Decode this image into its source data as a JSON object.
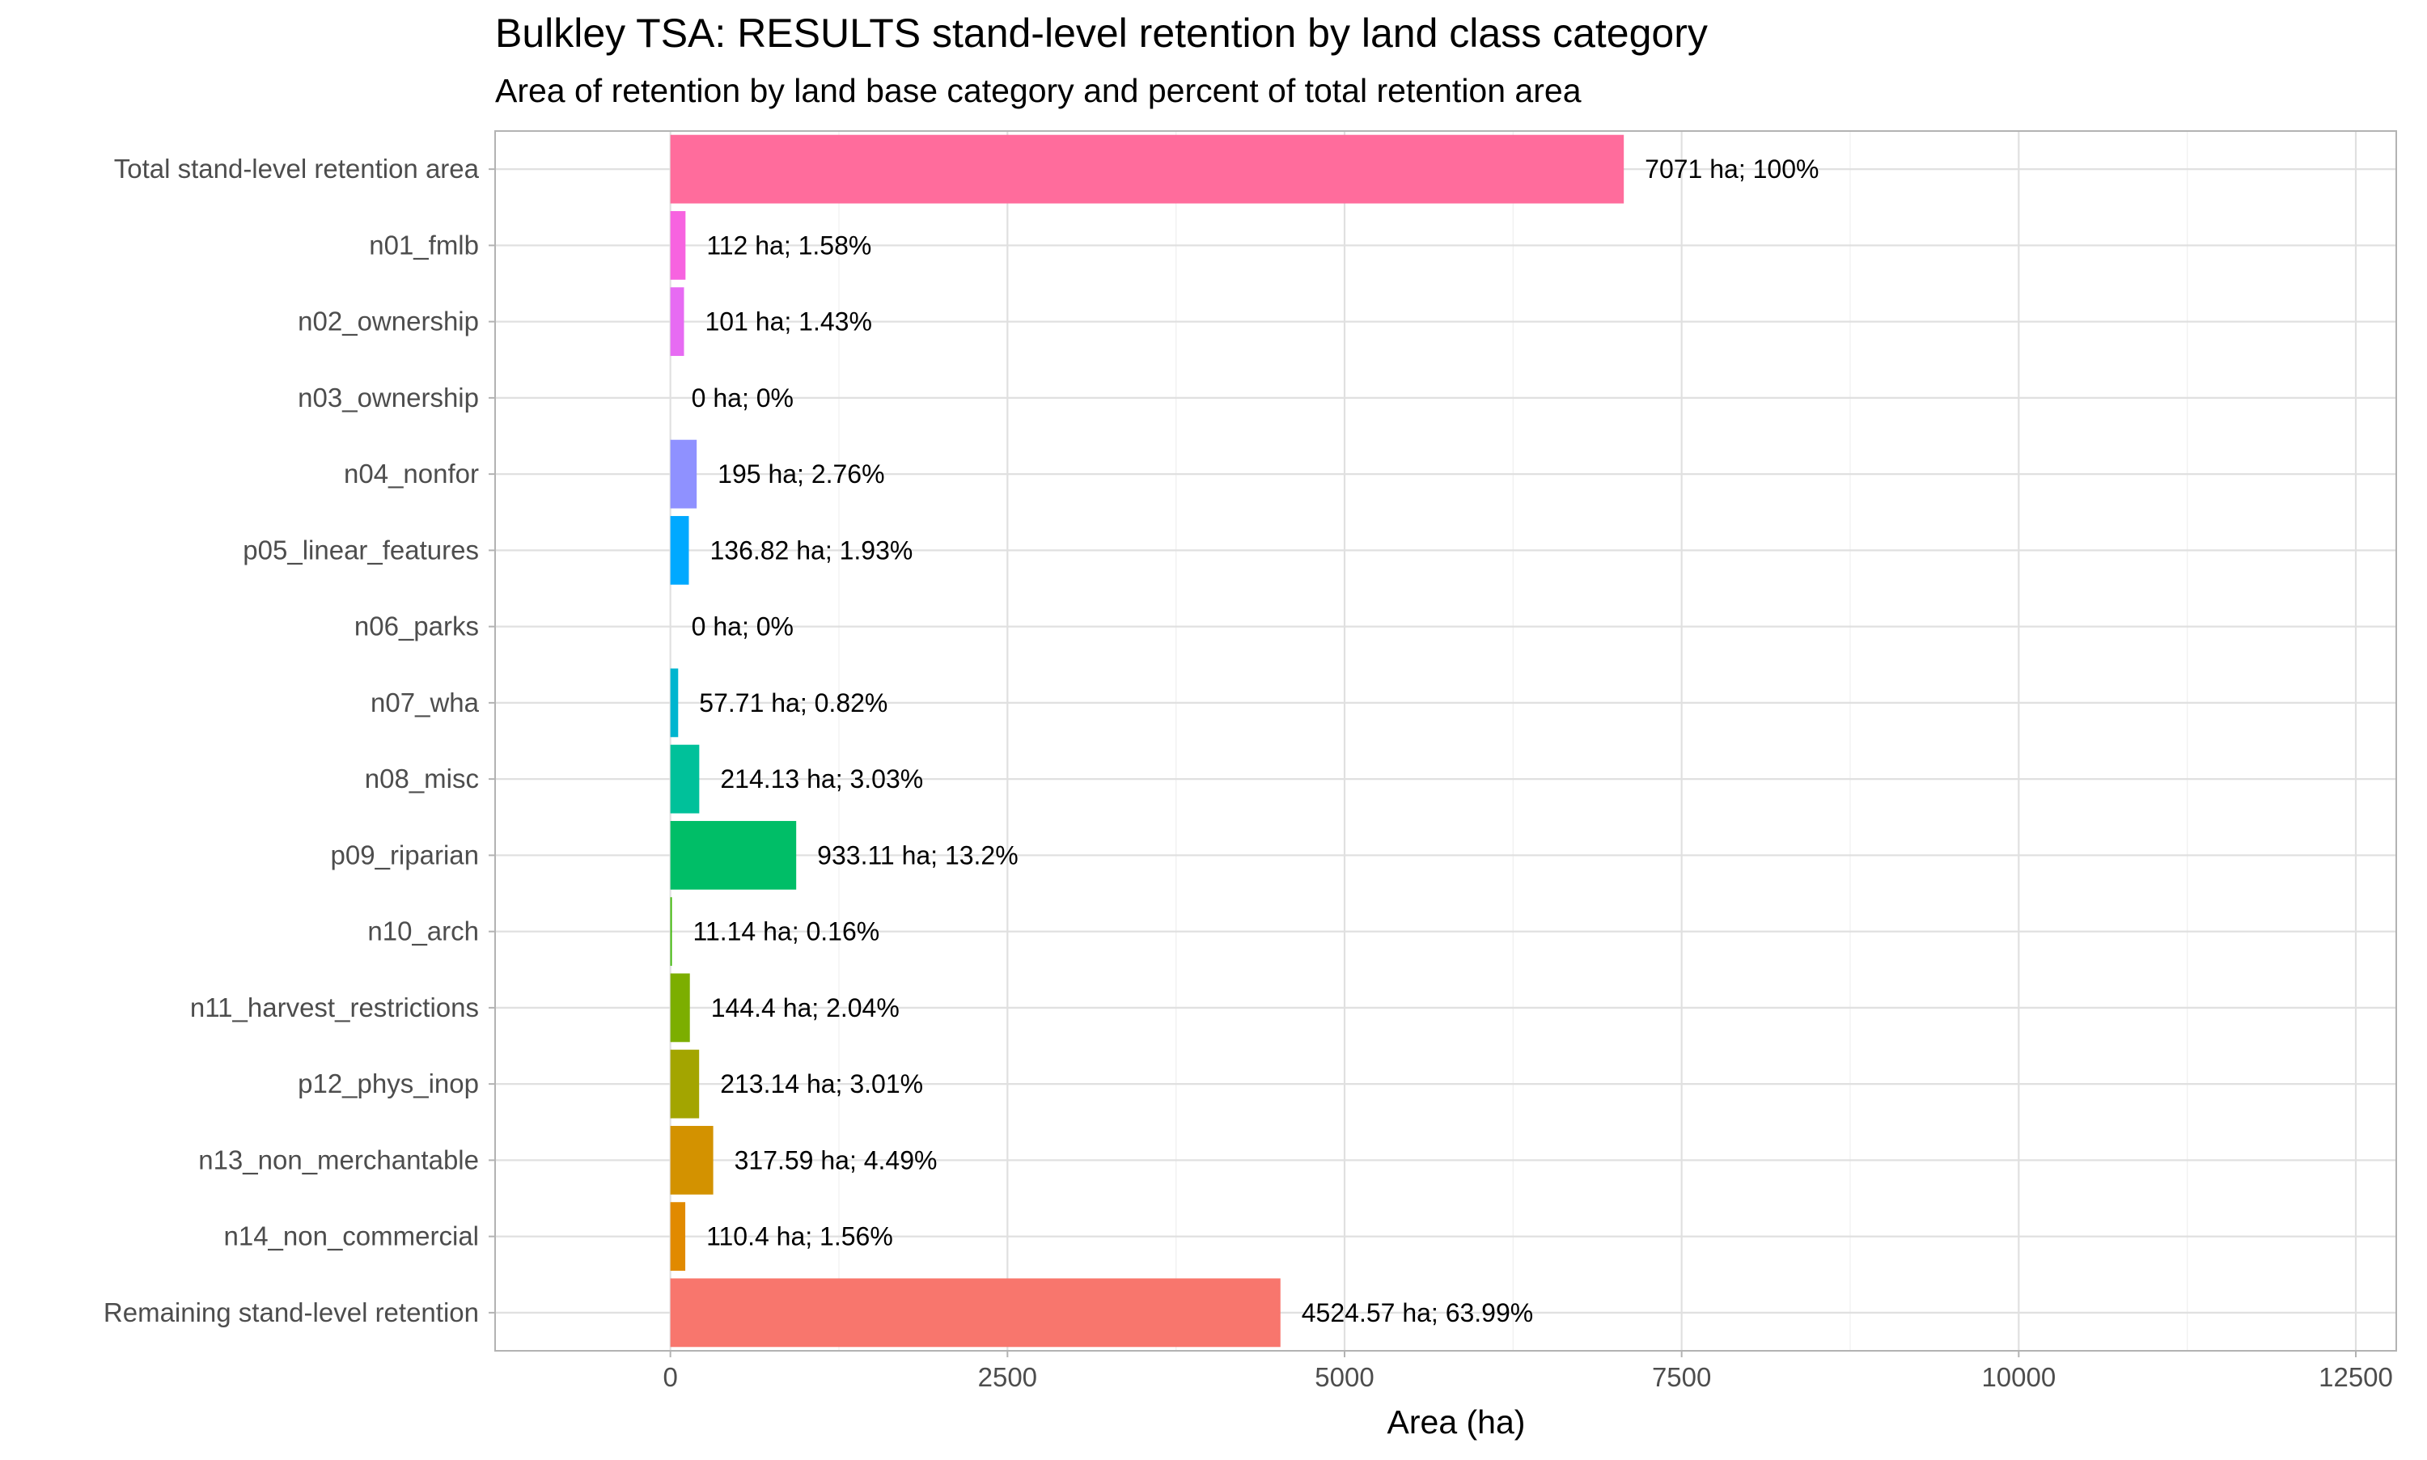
{
  "chart_data": {
    "type": "bar",
    "orientation": "horizontal",
    "title": "Bulkley TSA: RESULTS stand-level retention by land class category",
    "subtitle": "Area of retention by land base category and percent of total retention area",
    "xlabel": "Area (ha)",
    "ylabel": "",
    "xlim": [
      -1300,
      12800
    ],
    "xticks": [
      0,
      2500,
      5000,
      7500,
      10000,
      12500
    ],
    "xtick_labels": [
      "0",
      "2500",
      "5000",
      "7500",
      "10000",
      "12500"
    ],
    "grid": true,
    "legend": "none",
    "categories": [
      "Total stand-level retention area",
      "n01_fmlb",
      "n02_ownership",
      "n03_ownership",
      "n04_nonfor",
      "p05_linear_features",
      "n06_parks",
      "n07_wha",
      "n08_misc",
      "p09_riparian",
      "n10_arch",
      "n11_harvest_restrictions",
      "p12_phys_inop",
      "n13_non_merchantable",
      "n14_non_commercial",
      "Remaining stand-level retention"
    ],
    "values": [
      7071,
      112,
      101,
      0,
      195,
      136.82,
      0,
      57.71,
      214.13,
      933.11,
      11.14,
      144.4,
      213.14,
      317.59,
      110.4,
      4524.57
    ],
    "data_labels": [
      "7071 ha; 100%",
      "112 ha; 1.58%",
      "101 ha; 1.43%",
      "0 ha; 0%",
      "195 ha; 2.76%",
      "136.82 ha; 1.93%",
      "0 ha; 0%",
      "57.71 ha; 0.82%",
      "214.13 ha; 3.03%",
      "933.11 ha; 13.2%",
      "11.14 ha; 0.16%",
      "144.4 ha; 2.04%",
      "213.14 ha; 3.01%",
      "317.59 ha; 4.49%",
      "110.4 ha; 1.56%",
      "4524.57 ha; 63.99%"
    ],
    "colors": [
      "#FF6C9C",
      "#F763E0",
      "#E76BF3",
      "#C77CFF",
      "#8F91FF",
      "#00A9FF",
      "#00BCD8",
      "#00B5CF",
      "#00C19A",
      "#00BE67",
      "#39B600",
      "#7CAE00",
      "#A3A500",
      "#D39200",
      "#E18A00",
      "#F8766D"
    ]
  }
}
